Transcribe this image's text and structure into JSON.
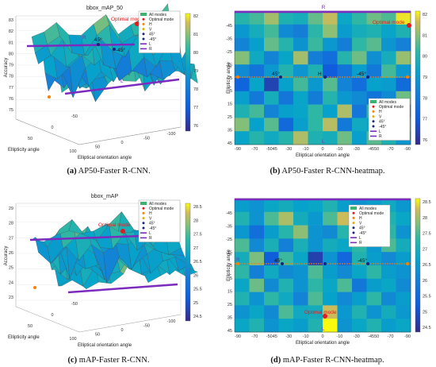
{
  "panels": [
    {
      "id": "a",
      "kind": "surface",
      "title": "bbox_mAP_50",
      "caption_letter": "(a)",
      "caption_text": " AP50-Faster R-CNN.",
      "zlabel": "Accuracy",
      "xlabel": "Ellipticity angle",
      "ylabel": "Elliptical orientation angle",
      "zticks": [
        "83",
        "82",
        "81",
        "80",
        "79",
        "78",
        "77",
        "76",
        "75"
      ],
      "xticks": [
        "50",
        "0",
        "-50"
      ],
      "yticks": [
        "100",
        "50",
        "0",
        "-50",
        "-100"
      ],
      "colorbar_ticks": [
        "82",
        "81",
        "80",
        "79",
        "78",
        "77",
        "76"
      ],
      "line_labels": {
        "R": "R",
        "L": "L"
      },
      "annotations": {
        "optimal": "Optimal mode",
        "p45": "45°",
        "m45": "-45°"
      },
      "legend": [
        "All modes",
        "Optimal mode",
        "H",
        "V",
        "45°",
        "-45°",
        "L",
        "R"
      ]
    },
    {
      "id": "b",
      "kind": "heatmap",
      "caption_letter": "(b)",
      "caption_text": " AP50-Faster R-CNN-heatmap.",
      "xlabel": "Elliptical orientation angle",
      "ylabel": "Ellipticity angle",
      "xticks": [
        "-90",
        "-70",
        "-5045",
        "-30",
        "-10",
        "0",
        "-10",
        "-30",
        "-4550",
        "-70",
        "-90"
      ],
      "yticks": [
        "-45",
        "-35",
        "-25",
        "-15",
        "-5",
        "5",
        "15",
        "25",
        "35",
        "45"
      ],
      "colorbar_ticks": [
        "82",
        "81",
        "80",
        "79",
        "78",
        "77",
        "76"
      ],
      "line_labels": {
        "R": "R",
        "L": "L",
        "H": "H"
      },
      "annotations": {
        "optimal": "Optimal mode",
        "p45": "45°",
        "m45": "-45°"
      },
      "legend": [
        "All modes",
        "Optimal mode",
        "H",
        "V",
        "45°",
        "-45°",
        "L",
        "R"
      ]
    },
    {
      "id": "c",
      "kind": "surface",
      "title": "bbox_mAP",
      "caption_letter": "(c)",
      "caption_text": " mAP-Faster R-CNN.",
      "zlabel": "Accuracy",
      "xlabel": "Ellipticity angle",
      "ylabel": "Elliptical orientation angle",
      "zticks": [
        "29",
        "28",
        "27",
        "26",
        "25",
        "24",
        "23"
      ],
      "xticks": [
        "50",
        "0",
        "-50"
      ],
      "yticks": [
        "100",
        "50",
        "0",
        "-50",
        "-100"
      ],
      "colorbar_ticks": [
        "28.5",
        "28",
        "27.5",
        "27",
        "26.5",
        "26",
        "25.5",
        "25",
        "24.5"
      ],
      "line_labels": {},
      "annotations": {
        "optimal": "Optimal mode",
        "p45": "",
        "m45": ""
      },
      "legend": [
        "All modes",
        "Optimal mode",
        "H",
        "V",
        "45°",
        "-45°",
        "L",
        "R"
      ]
    },
    {
      "id": "d",
      "kind": "heatmap",
      "caption_letter": "(d)",
      "caption_text": " mAP-Faster R-CNN-heatmap.",
      "xlabel": "Elliptical orientation angle",
      "ylabel": "Ellipticity angle",
      "xticks": [
        "-90",
        "-70",
        "-5045",
        "-30",
        "-10",
        "0",
        "-10",
        "-30",
        "-4550",
        "-70",
        "-90"
      ],
      "yticks": [
        "-45",
        "-35",
        "-25",
        "-15",
        "-5",
        "5",
        "15",
        "25",
        "35",
        "45"
      ],
      "colorbar_ticks": [
        "28.5",
        "28",
        "27.5",
        "27",
        "26.5",
        "26",
        "25.5",
        "25",
        "24.5"
      ],
      "line_labels": {
        "R": "R",
        "L": "L"
      },
      "annotations": {
        "optimal": "Optimal mode",
        "p45": "45°",
        "m45": "-45°"
      },
      "legend": [
        "All modes",
        "Optimal mode",
        "H",
        "V",
        "45°",
        "-45°",
        "L",
        "R"
      ]
    }
  ],
  "chart_data": [
    {
      "type": "heatmap",
      "title": "bbox_mAP_50",
      "xlabel": "Elliptical orientation angle",
      "ylabel": "Ellipticity angle",
      "zlabel": "Accuracy",
      "range": [
        75.5,
        82.5
      ],
      "x_count": 12,
      "y_count": 10,
      "values": [
        [
          80.2,
          80.6,
          81.5,
          80.0,
          79.8,
          80.9,
          81.8,
          79.5,
          80.4,
          81.0,
          80.7,
          82.3
        ],
        [
          79.0,
          79.8,
          80.6,
          78.6,
          78.2,
          80.3,
          81.3,
          79.1,
          79.8,
          80.0,
          79.4,
          80.0
        ],
        [
          78.4,
          79.2,
          80.9,
          80.2,
          78.8,
          80.5,
          79.0,
          78.2,
          80.4,
          80.8,
          78.9,
          78.3
        ],
        [
          81.2,
          79.6,
          78.4,
          79.4,
          81.5,
          78.2,
          77.6,
          80.2,
          81.0,
          78.7,
          79.8,
          81.4
        ],
        [
          78.6,
          77.8,
          79.0,
          80.1,
          78.9,
          80.0,
          76.9,
          77.8,
          79.2,
          78.0,
          80.6,
          79.0
        ],
        [
          77.2,
          79.4,
          76.2,
          79.3,
          80.6,
          79.0,
          80.8,
          78.4,
          77.6,
          79.3,
          79.1,
          77.5
        ],
        [
          79.2,
          78.0,
          79.8,
          77.9,
          79.4,
          78.1,
          80.2,
          79.0,
          78.6,
          77.8,
          78.6,
          81.0
        ],
        [
          80.0,
          80.6,
          78.4,
          79.2,
          79.4,
          80.4,
          79.3,
          81.6,
          77.9,
          80.5,
          79.2,
          78.2
        ],
        [
          81.2,
          79.3,
          80.8,
          77.4,
          79.2,
          80.4,
          81.7,
          78.0,
          79.6,
          79.4,
          80.7,
          80.4
        ],
        [
          79.4,
          80.2,
          79.6,
          80.2,
          81.6,
          80.0,
          79.8,
          81.0,
          79.2,
          80.8,
          80.0,
          78.9
        ]
      ]
    },
    {
      "type": "heatmap",
      "title": "bbox_mAP",
      "xlabel": "Elliptical orientation angle",
      "ylabel": "Ellipticity angle",
      "zlabel": "Accuracy",
      "range": [
        24.2,
        28.8
      ],
      "x_count": 12,
      "y_count": 10,
      "values": [
        [
          26.6,
          26.4,
          26.8,
          27.0,
          26.7,
          26.8,
          27.2,
          26.6,
          26.4,
          26.6,
          26.9,
          26.5
        ],
        [
          27.2,
          26.4,
          27.6,
          28.2,
          27.0,
          26.5,
          27.6,
          28.4,
          27.0,
          26.7,
          27.2,
          26.8
        ],
        [
          26.5,
          25.6,
          26.6,
          27.3,
          28.0,
          26.4,
          26.2,
          27.3,
          25.9,
          26.6,
          27.4,
          26.4
        ],
        [
          27.6,
          26.2,
          27.1,
          26.0,
          27.1,
          26.4,
          27.0,
          26.8,
          27.4,
          26.5,
          27.6,
          27.0
        ],
        [
          27.0,
          27.9,
          25.2,
          27.5,
          26.8,
          24.6,
          26.4,
          25.4,
          27.2,
          26.6,
          26.2,
          26.6
        ],
        [
          27.4,
          26.0,
          26.9,
          26.2,
          26.4,
          27.6,
          26.6,
          26.2,
          26.8,
          27.4,
          26.6,
          26.4
        ],
        [
          26.8,
          27.8,
          26.2,
          27.2,
          26.4,
          27.4,
          26.8,
          27.6,
          25.8,
          26.6,
          26.8,
          26.2
        ],
        [
          27.2,
          26.4,
          27.4,
          26.9,
          26.1,
          27.6,
          26.7,
          26.2,
          26.6,
          27.4,
          26.2,
          26.6
        ],
        [
          26.4,
          26.8,
          26.2,
          27.6,
          26.9,
          27.0,
          28.4,
          26.5,
          27.2,
          26.4,
          27.0,
          26.5
        ],
        [
          26.8,
          27.2,
          26.4,
          26.8,
          26.6,
          27.2,
          28.8,
          26.4,
          26.8,
          27.2,
          26.6,
          26.8
        ]
      ]
    }
  ]
}
